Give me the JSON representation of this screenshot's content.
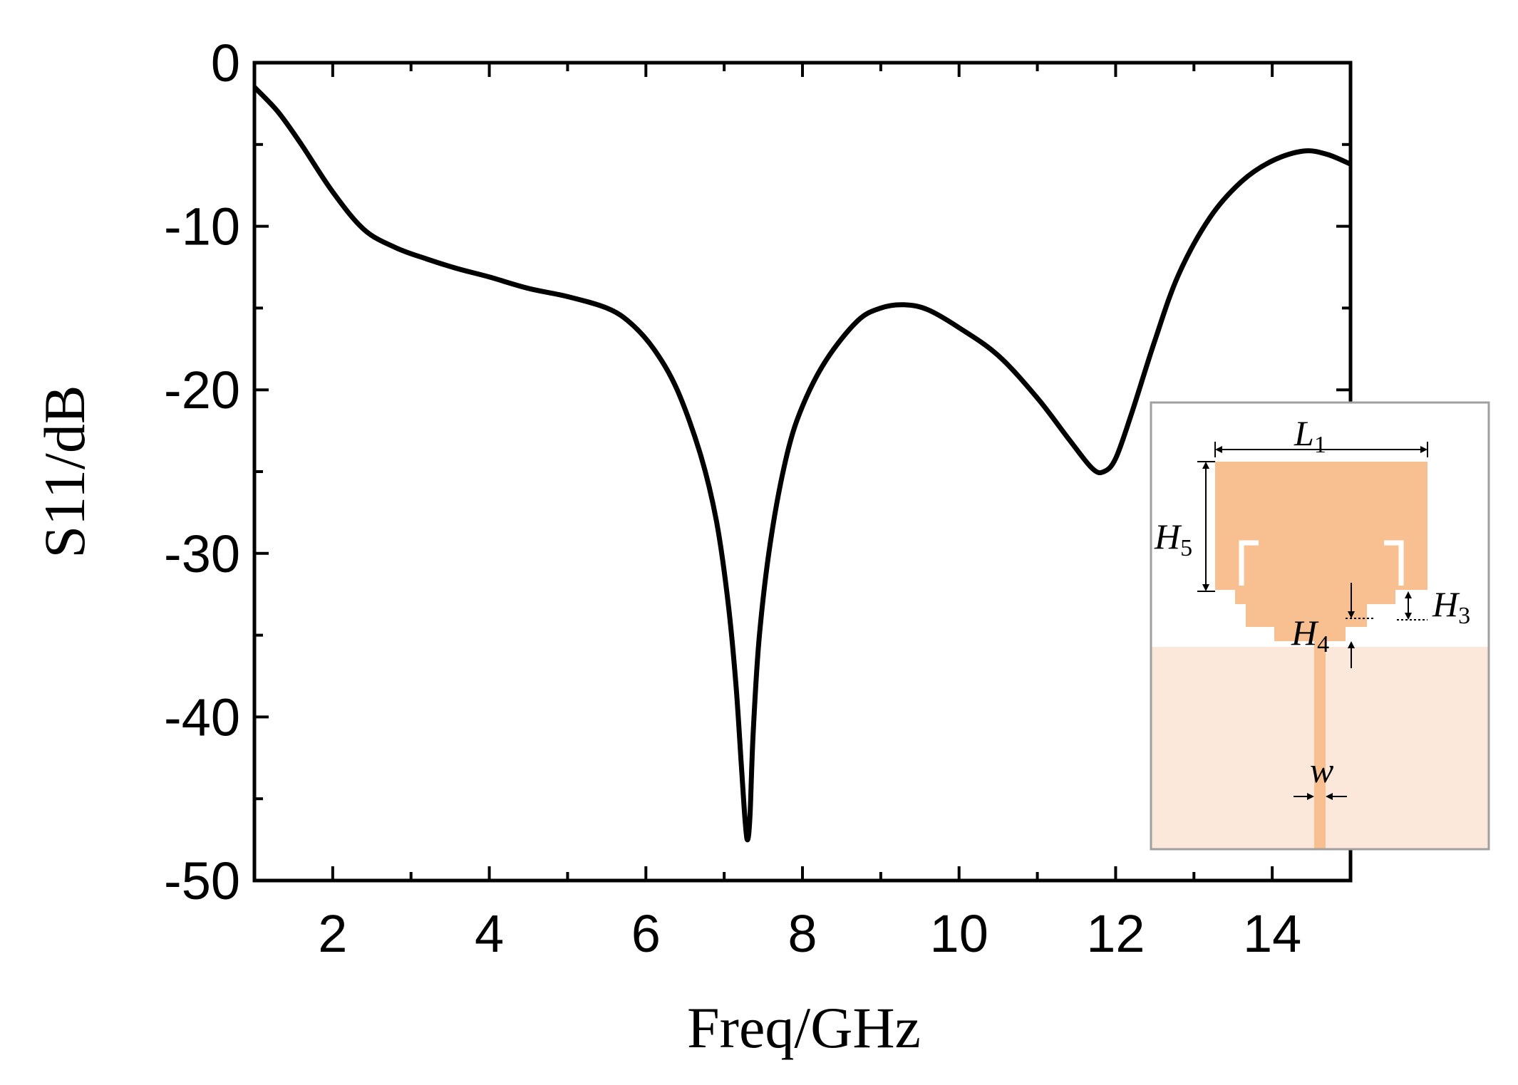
{
  "chart_data": {
    "type": "line",
    "xlabel": "Freq/GHz",
    "ylabel": "S11/dB",
    "xlim": [
      1,
      15
    ],
    "ylim": [
      -50,
      0
    ],
    "xticks": [
      2,
      4,
      6,
      8,
      10,
      12,
      14
    ],
    "yticks": [
      0,
      -10,
      -20,
      -30,
      -40,
      -50
    ],
    "grid": false,
    "series": [
      {
        "x": [
          1.0,
          1.3,
          1.6,
          2.0,
          2.4,
          2.8,
          3.2,
          3.6,
          4.0,
          4.5,
          5.0,
          5.5,
          5.8,
          6.1,
          6.4,
          6.7,
          6.9,
          7.05,
          7.15,
          7.22,
          7.27,
          7.3,
          7.33,
          7.37,
          7.45,
          7.6,
          7.8,
          8.0,
          8.3,
          8.7,
          9.0,
          9.3,
          9.6,
          10.0,
          10.5,
          11.0,
          11.4,
          11.7,
          11.85,
          12.0,
          12.2,
          12.5,
          12.8,
          13.2,
          13.6,
          14.0,
          14.4,
          14.7,
          15.0
        ],
        "y": [
          -1.5,
          -3.0,
          -5.0,
          -7.9,
          -10.2,
          -11.3,
          -12.0,
          -12.6,
          -13.1,
          -13.8,
          -14.3,
          -15.0,
          -15.9,
          -17.5,
          -20.0,
          -24.0,
          -28.0,
          -33.0,
          -38.0,
          -43.0,
          -46.5,
          -47.5,
          -46.0,
          -41.0,
          -35.0,
          -29.0,
          -24.0,
          -21.0,
          -18.2,
          -15.8,
          -15.0,
          -14.8,
          -15.1,
          -16.2,
          -17.9,
          -20.5,
          -23.0,
          -24.8,
          -25.0,
          -24.2,
          -21.5,
          -17.0,
          -13.0,
          -9.5,
          -7.3,
          -6.0,
          -5.4,
          -5.6,
          -6.2
        ]
      }
    ],
    "line_color": "#000000"
  },
  "inset": {
    "labels": {
      "L1": "L",
      "L1_sub": "1",
      "H5": "H",
      "H5_sub": "5",
      "H3": "H",
      "H3_sub": "3",
      "H4": "H",
      "H4_sub": "4",
      "w": "w"
    },
    "colors": {
      "patch": "#f8c090",
      "substrate": "#fce8da",
      "border": "#a0a0a0"
    }
  }
}
